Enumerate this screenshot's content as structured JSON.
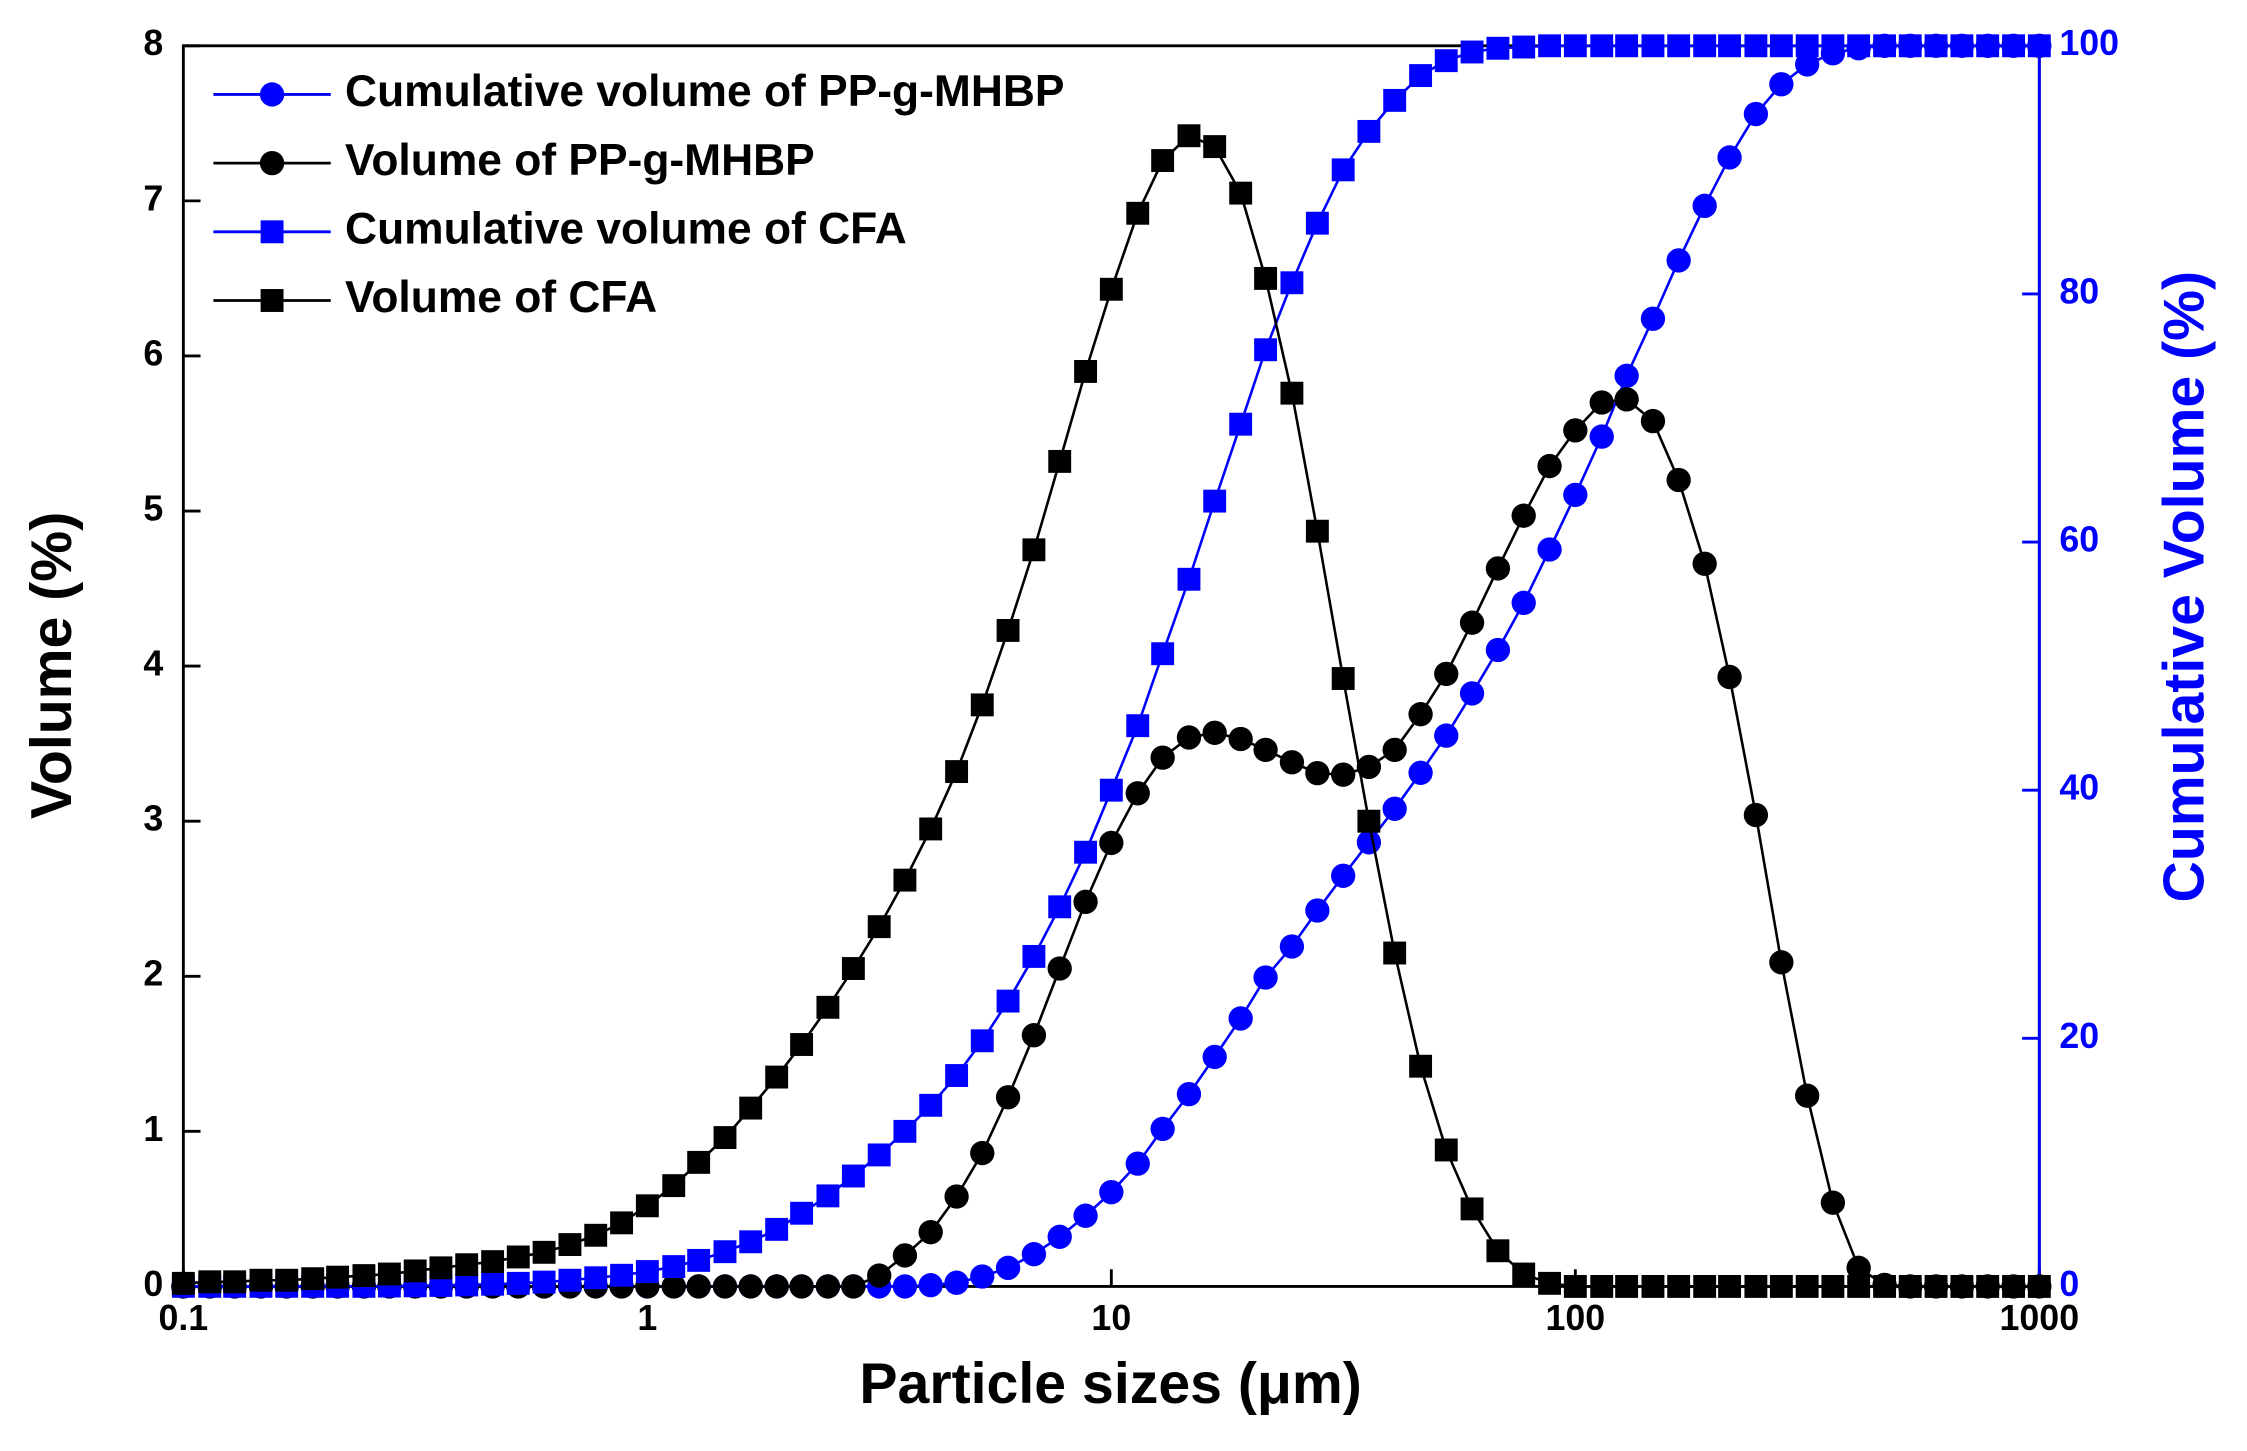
{
  "chart_data": {
    "type": "line",
    "xlabel": "Particle sizes (μm)",
    "ylabel": "Volume (%)",
    "y2label": "Cumulative Volume (%)",
    "xscale": "log",
    "xlim": [
      0.1,
      1000
    ],
    "xticks": [
      0.1,
      1,
      10,
      100,
      1000
    ],
    "ylim": [
      0,
      8
    ],
    "yticks": [
      0,
      1,
      2,
      3,
      4,
      5,
      6,
      7,
      8
    ],
    "y2lim": [
      0,
      100
    ],
    "y2ticks": [
      0,
      20,
      40,
      60,
      80,
      100
    ],
    "legend": "upper left",
    "x": [
      0.1,
      0.114,
      0.129,
      0.147,
      0.167,
      0.19,
      0.215,
      0.245,
      0.278,
      0.316,
      0.359,
      0.408,
      0.464,
      0.527,
      0.599,
      0.681,
      0.774,
      0.88,
      1,
      1.14,
      1.29,
      1.47,
      1.67,
      1.9,
      2.15,
      2.45,
      2.78,
      3.16,
      3.59,
      4.08,
      4.64,
      5.27,
      5.99,
      6.81,
      7.74,
      8.8,
      10,
      11.4,
      12.9,
      14.7,
      16.7,
      19,
      21.5,
      24.5,
      27.8,
      31.6,
      35.9,
      40.8,
      46.4,
      52.7,
      59.9,
      68.1,
      77.4,
      88,
      100,
      114,
      129,
      147,
      167,
      190,
      215,
      245,
      278,
      316,
      359,
      408,
      464,
      527,
      599,
      681,
      774,
      880,
      1000
    ],
    "series": [
      {
        "name": "Cumulative volume of PP-g-MHBP",
        "color": "#0000ff",
        "marker": "circle",
        "axis": "y2",
        "values": [
          0,
          0,
          0,
          0,
          0,
          0,
          0,
          0,
          0,
          0,
          0,
          0,
          0,
          0,
          0,
          0,
          0,
          0,
          0,
          0,
          0,
          0,
          0,
          0,
          0,
          0,
          0,
          0,
          0,
          0.1,
          0.3,
          0.8,
          1.5,
          2.6,
          4,
          5.7,
          7.6,
          9.9,
          12.7,
          15.5,
          18.5,
          21.6,
          24.9,
          27.4,
          30.3,
          33.1,
          35.8,
          38.5,
          41.4,
          44.4,
          47.8,
          51.3,
          55.1,
          59.4,
          63.8,
          68.5,
          73.4,
          78,
          82.7,
          87.1,
          91,
          94.5,
          96.9,
          98.5,
          99.4,
          99.8,
          100,
          100,
          100,
          100,
          100,
          100,
          100
        ]
      },
      {
        "name": "Volume of PP-g-MHBP",
        "color": "#000000",
        "marker": "circle",
        "values": [
          0,
          0,
          0,
          0,
          0,
          0,
          0,
          0,
          0,
          0,
          0,
          0,
          0,
          0,
          0,
          0,
          0,
          0,
          0,
          0,
          0,
          0,
          0,
          0,
          0,
          0,
          0,
          0.07,
          0.2,
          0.35,
          0.58,
          0.86,
          1.22,
          1.62,
          2.05,
          2.48,
          2.86,
          3.18,
          3.41,
          3.54,
          3.57,
          3.53,
          3.46,
          3.38,
          3.31,
          3.3,
          3.35,
          3.46,
          3.69,
          3.95,
          4.28,
          4.63,
          4.97,
          5.29,
          5.52,
          5.7,
          5.72,
          5.58,
          5.2,
          4.66,
          3.93,
          3.04,
          2.09,
          1.23,
          0.54,
          0.12,
          0.01,
          0,
          0,
          0,
          0,
          0,
          0
        ]
      },
      {
        "name": "Cumulative volume of CFA",
        "color": "#0000ff",
        "marker": "square",
        "axis": "y2",
        "values": [
          0.01,
          0.01,
          0.01,
          0.01,
          0.01,
          0.01,
          0.01,
          0.01,
          0.03,
          0.05,
          0.08,
          0.12,
          0.18,
          0.25,
          0.35,
          0.5,
          0.7,
          0.9,
          1.2,
          1.6,
          2.1,
          2.8,
          3.6,
          4.6,
          5.9,
          7.3,
          8.9,
          10.6,
          12.5,
          14.6,
          17,
          19.8,
          23,
          26.6,
          30.6,
          35,
          40,
          45.2,
          51,
          57,
          63.3,
          69.5,
          75.5,
          80.9,
          85.7,
          90,
          93.1,
          95.6,
          97.6,
          98.8,
          99.5,
          99.8,
          99.9,
          100,
          100,
          100,
          100,
          100,
          100,
          100,
          100,
          100,
          100,
          100,
          100,
          100,
          100,
          100,
          100,
          100,
          100,
          100,
          100
        ]
      },
      {
        "name": "Volume of CFA",
        "color": "#000000",
        "marker": "square",
        "values": [
          0.02,
          0.03,
          0.03,
          0.04,
          0.04,
          0.05,
          0.06,
          0.07,
          0.08,
          0.1,
          0.12,
          0.14,
          0.16,
          0.19,
          0.22,
          0.27,
          0.33,
          0.41,
          0.52,
          0.65,
          0.8,
          0.96,
          1.15,
          1.35,
          1.56,
          1.8,
          2.05,
          2.32,
          2.62,
          2.95,
          3.32,
          3.75,
          4.23,
          4.75,
          5.32,
          5.9,
          6.43,
          6.92,
          7.26,
          7.42,
          7.35,
          7.05,
          6.5,
          5.76,
          4.87,
          3.92,
          3,
          2.15,
          1.42,
          0.88,
          0.5,
          0.23,
          0.08,
          0.02,
          0,
          0,
          0,
          0,
          0,
          0,
          0,
          0,
          0,
          0,
          0,
          0,
          0,
          0,
          0,
          0,
          0,
          0,
          0
        ]
      }
    ]
  }
}
